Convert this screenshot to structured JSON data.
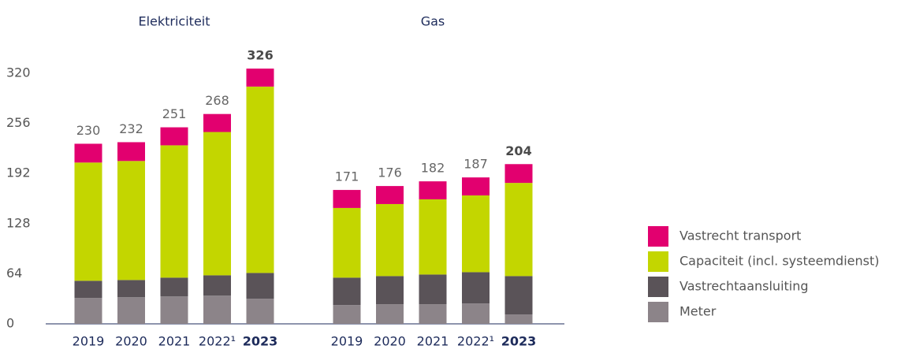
{
  "chart_data": {
    "type": "bar",
    "stacked": true,
    "ylim": [
      0,
      320
    ],
    "yticks": [
      0,
      64,
      128,
      192,
      256,
      320
    ],
    "legend": "right",
    "highlight_index": 4,
    "series": [
      {
        "name": "Meter",
        "color": "#8c8489"
      },
      {
        "name": "Vastrechtaansluiting",
        "color": "#5a5358"
      },
      {
        "name": "Capaciteit (incl. systeemdienst)",
        "color": "#c3d600"
      },
      {
        "name": "Vastrecht transport",
        "color": "#e2006f"
      }
    ],
    "panels": [
      {
        "title": "Elektriciteit",
        "categories": [
          "2019",
          "2020",
          "2021",
          "2022¹",
          "2023"
        ],
        "totals": [
          230,
          232,
          251,
          268,
          326
        ],
        "series": [
          {
            "values": [
              33,
              34,
              35,
              36,
              32
            ]
          },
          {
            "values": [
              22,
              22,
              24,
              26,
              33
            ]
          },
          {
            "values": [
              151,
              152,
              169,
              183,
              238
            ]
          },
          {
            "values": [
              24,
              24,
              23,
              23,
              23
            ]
          }
        ]
      },
      {
        "title": "Gas",
        "categories": [
          "2019",
          "2020",
          "2021",
          "2022¹",
          "2023"
        ],
        "totals": [
          171,
          176,
          182,
          187,
          204
        ],
        "series": [
          {
            "values": [
              24,
              25,
              25,
              26,
              12
            ]
          },
          {
            "values": [
              35,
              36,
              38,
              40,
              49
            ]
          },
          {
            "values": [
              89,
              92,
              96,
              98,
              119
            ]
          },
          {
            "values": [
              23,
              23,
              23,
              23,
              24
            ]
          }
        ]
      }
    ]
  }
}
